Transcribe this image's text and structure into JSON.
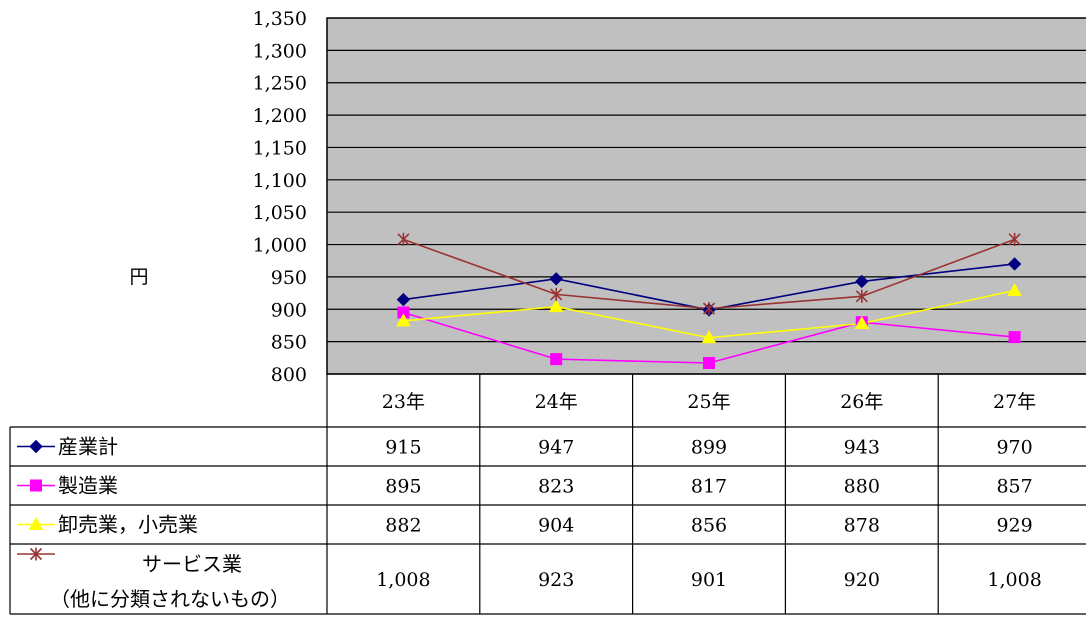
{
  "chart_data": {
    "type": "line",
    "ylabel": "円",
    "ylim": [
      800,
      1350
    ],
    "ytick_step": 50,
    "yticks": [
      "800",
      "850",
      "900",
      "950",
      "1,000",
      "1,050",
      "1,100",
      "1,150",
      "1,200",
      "1,250",
      "1,300",
      "1,350"
    ],
    "grid": true,
    "legend": "data-table",
    "categories": [
      "23年",
      "24年",
      "25年",
      "26年",
      "27年"
    ],
    "series": [
      {
        "name": "産業計",
        "label_lines": [
          "産業計"
        ],
        "values": [
          915,
          947,
          899,
          943,
          970
        ],
        "display": [
          "915",
          "947",
          "899",
          "943",
          "970"
        ],
        "color": "#000080",
        "marker": "diamond"
      },
      {
        "name": "製造業",
        "label_lines": [
          "製造業"
        ],
        "values": [
          895,
          823,
          817,
          880,
          857
        ],
        "display": [
          "895",
          "823",
          "817",
          "880",
          "857"
        ],
        "color": "#ff00ff",
        "marker": "square"
      },
      {
        "name": "卸売業，小売業",
        "label_lines": [
          "卸売業，小売業"
        ],
        "values": [
          882,
          904,
          856,
          878,
          929
        ],
        "display": [
          "882",
          "904",
          "856",
          "878",
          "929"
        ],
        "color": "#ffff00",
        "marker": "triangle"
      },
      {
        "name": "サービス業（他に分類されないもの）",
        "label_lines": [
          "サービス業",
          "（他に分類されないもの）"
        ],
        "values": [
          1008,
          923,
          901,
          920,
          1008
        ],
        "display": [
          "1,008",
          "923",
          "901",
          "920",
          "1,008"
        ],
        "color": "#993333",
        "marker": "star"
      }
    ],
    "plot_background": "#c0c0c0"
  }
}
